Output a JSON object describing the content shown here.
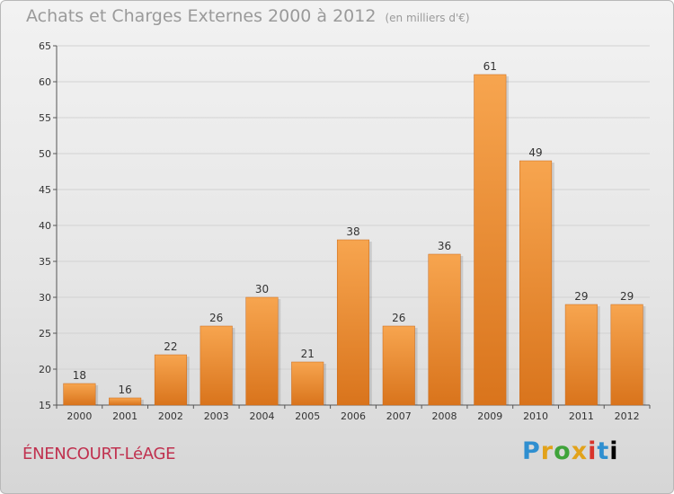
{
  "chart_data": {
    "type": "bar",
    "title": "Achats et Charges Externes 2000 à 2012",
    "subtitle": "(en milliers d'€)",
    "categories": [
      "2000",
      "2001",
      "2002",
      "2003",
      "2004",
      "2005",
      "2006",
      "2007",
      "2008",
      "2009",
      "2010",
      "2011",
      "2012"
    ],
    "values": [
      18,
      16,
      22,
      26,
      30,
      21,
      38,
      26,
      36,
      61,
      49,
      29,
      29
    ],
    "xlabel": "",
    "ylabel": "",
    "ylim": [
      15,
      65
    ],
    "yticks": [
      15,
      20,
      25,
      30,
      35,
      40,
      45,
      50,
      55,
      60,
      65
    ],
    "grid": true,
    "legend": "none",
    "bar_color_light": "#f7a54f",
    "bar_color_dark": "#d9741c"
  },
  "commune": "ÉNENCOURT-LéAGE",
  "logo": {
    "letters": [
      "P",
      "r",
      "o",
      "x",
      "i",
      "t",
      "i"
    ]
  }
}
